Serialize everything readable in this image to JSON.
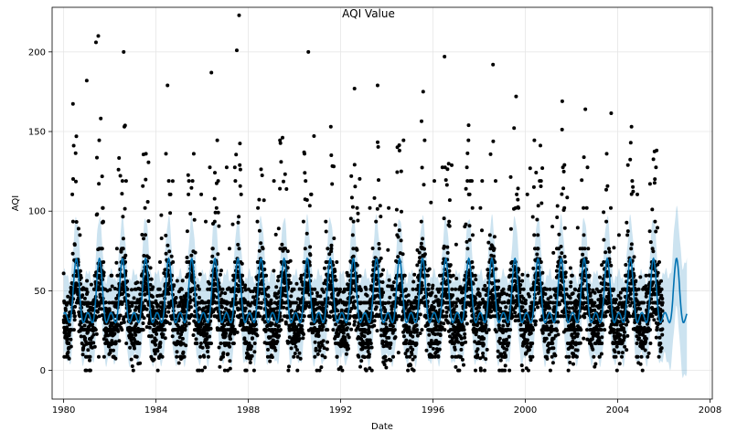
{
  "chart_data": {
    "type": "scatter",
    "title": "AQI Value",
    "xlabel": "Date",
    "ylabel": "AQI",
    "xlim": [
      1979.5,
      2008.1
    ],
    "ylim": [
      -18,
      228
    ],
    "x_ticks": [
      1980,
      1984,
      1988,
      1992,
      1996,
      2000,
      2004,
      2008
    ],
    "y_ticks": [
      0,
      50,
      100,
      150,
      200
    ],
    "grid": true,
    "legend": "none",
    "series": [
      {
        "kind": "observations",
        "color": "#000000",
        "x_range": [
          1980.0,
          2005.95
        ],
        "seasonal_model": {
          "base": 36,
          "seasonal_amplitude": 14,
          "peak_phase": 0.55,
          "noise_sd": 12
        },
        "sample_outliers": [
          {
            "x": 1981.0,
            "y": 182
          },
          {
            "x": 1981.5,
            "y": 210
          },
          {
            "x": 1981.4,
            "y": 206
          },
          {
            "x": 1982.6,
            "y": 200
          },
          {
            "x": 1984.5,
            "y": 179
          },
          {
            "x": 1986.4,
            "y": 187
          },
          {
            "x": 1987.6,
            "y": 223
          },
          {
            "x": 1987.5,
            "y": 201
          },
          {
            "x": 1990.6,
            "y": 200
          },
          {
            "x": 1992.6,
            "y": 177
          },
          {
            "x": 1993.6,
            "y": 179
          },
          {
            "x": 1996.5,
            "y": 197
          },
          {
            "x": 1998.6,
            "y": 192
          },
          {
            "x": 1999.6,
            "y": 172
          },
          {
            "x": 2001.6,
            "y": 169
          },
          {
            "x": 2002.6,
            "y": 164
          },
          {
            "x": 2004.6,
            "y": 153
          }
        ]
      },
      {
        "kind": "forecast",
        "color": "#0072B2",
        "x_range": [
          1980.0,
          2007.0
        ],
        "trend": 38,
        "seasonal_amplitude": 17,
        "peak_phase": 0.55
      },
      {
        "kind": "uncertainty",
        "color": "#0072B2",
        "opacity": 0.2,
        "half_width": 26,
        "extrapolation_widen_from": 2006.0,
        "extrapolation_max_half_width": 36
      }
    ]
  }
}
